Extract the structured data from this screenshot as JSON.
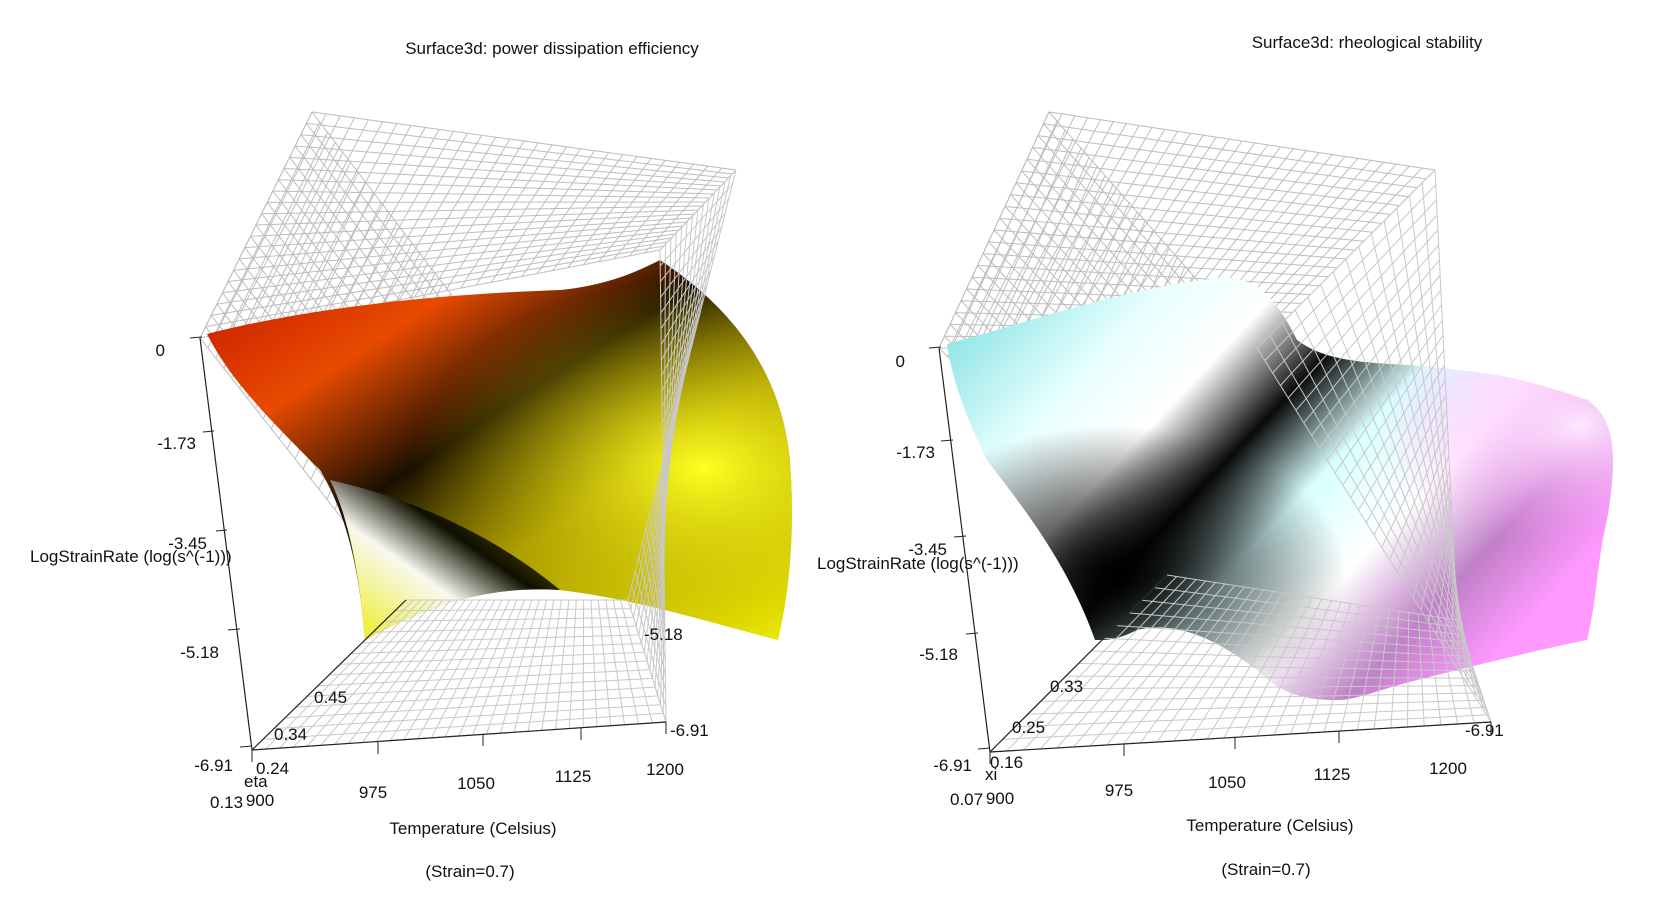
{
  "chart_data": [
    {
      "type": "surface3d",
      "title": "Surface3d: power dissipation efficiency",
      "xlabel": "Temperature (Celsius)",
      "ylabel": "LogStrainRate (log(s^(-1)))",
      "zlabel": "eta",
      "subtitle": "(Strain=0.7)",
      "x_ticks": [
        "900",
        "975",
        "1050",
        "1125",
        "1200"
      ],
      "y_ticks": [
        "0",
        "-1.73",
        "-3.45",
        "-5.18",
        "-6.91"
      ],
      "y_ticks_right": [
        "-5.18",
        "-6.91"
      ],
      "z_ticks": [
        "0.13",
        "0.24",
        "0.34",
        "0.45"
      ],
      "xlim": [
        900,
        1200
      ],
      "ylim": [
        -6.91,
        0
      ],
      "zlim": [
        0.13,
        0.45
      ],
      "grid": true,
      "colormap": [
        "#d01000",
        "#e84800",
        "#b8a000",
        "#f0f000",
        "#000000",
        "#ffffff"
      ]
    },
    {
      "type": "surface3d",
      "title": "Surface3d: rheological stability",
      "xlabel": "Temperature (Celsius)",
      "ylabel": "LogStrainRate (log(s^(-1)))",
      "zlabel": "xi",
      "subtitle": "(Strain=0.7)",
      "x_ticks": [
        "900",
        "975",
        "1050",
        "1125",
        "1200"
      ],
      "y_ticks": [
        "0",
        "-1.73",
        "-3.45",
        "-5.18",
        "-6.91"
      ],
      "y_ticks_right": [
        "-6.91"
      ],
      "z_ticks": [
        "0.07",
        "0.16",
        "0.25",
        "0.33"
      ],
      "xlim": [
        900,
        1200
      ],
      "ylim": [
        -6.91,
        0
      ],
      "zlim": [
        0.07,
        0.33
      ],
      "grid": true,
      "colormap": [
        "#80e0e0",
        "#ffffff",
        "#000000",
        "#c080c0",
        "#ff90ff"
      ]
    }
  ]
}
